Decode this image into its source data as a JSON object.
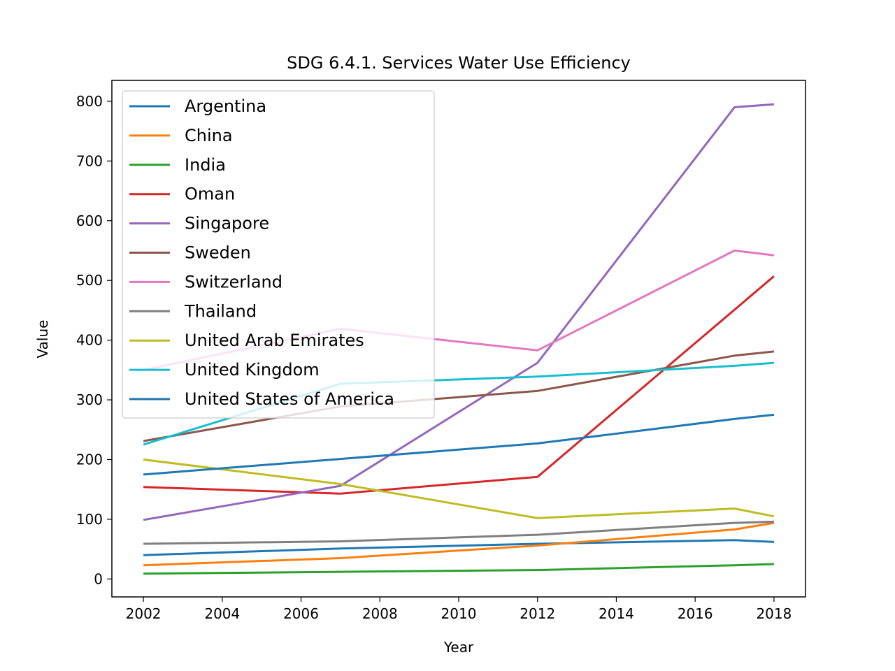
{
  "chart_data": {
    "type": "line",
    "title": "SDG 6.4.1. Services Water Use Efficiency",
    "xlabel": "Year",
    "ylabel": "Value",
    "xlim": [
      2001.2,
      2018.8
    ],
    "ylim": [
      -30,
      835
    ],
    "xticks": [
      2002,
      2004,
      2006,
      2008,
      2010,
      2012,
      2014,
      2016,
      2018
    ],
    "yticks": [
      0,
      100,
      200,
      300,
      400,
      500,
      600,
      700,
      800
    ],
    "grid": false,
    "legend_position": "top-left",
    "x": [
      2002,
      2007,
      2012,
      2017,
      2018
    ],
    "series": [
      {
        "name": "Argentina",
        "color": "#1f77b4",
        "values": [
          40,
          51,
          59,
          65,
          62
        ]
      },
      {
        "name": "China",
        "color": "#ff7f0e",
        "values": [
          23,
          35,
          56,
          83,
          94
        ]
      },
      {
        "name": "India",
        "color": "#2ca02c",
        "values": [
          9,
          12,
          15,
          23,
          25
        ]
      },
      {
        "name": "Oman",
        "color": "#d62728",
        "values": [
          154,
          143,
          171,
          451,
          507
        ]
      },
      {
        "name": "Singapore",
        "color": "#9467bd",
        "values": [
          99,
          156,
          362,
          790,
          795
        ]
      },
      {
        "name": "Sweden",
        "color": "#8c564b",
        "values": [
          231,
          289,
          315,
          374,
          381
        ]
      },
      {
        "name": "Switzerland",
        "color": "#e377c2",
        "values": [
          350,
          419,
          383,
          550,
          542
        ]
      },
      {
        "name": "Thailand",
        "color": "#7f7f7f",
        "values": [
          59,
          63,
          74,
          94,
          96
        ]
      },
      {
        "name": "United Arab Emirates",
        "color": "#bcbd22",
        "values": [
          200,
          159,
          102,
          118,
          105
        ]
      },
      {
        "name": "United Kingdom",
        "color": "#17becf",
        "values": [
          225,
          327,
          339,
          357,
          362
        ]
      },
      {
        "name": "United States of America",
        "color": "#1f77b4",
        "values": [
          175,
          201,
          227,
          268,
          275
        ]
      }
    ]
  }
}
